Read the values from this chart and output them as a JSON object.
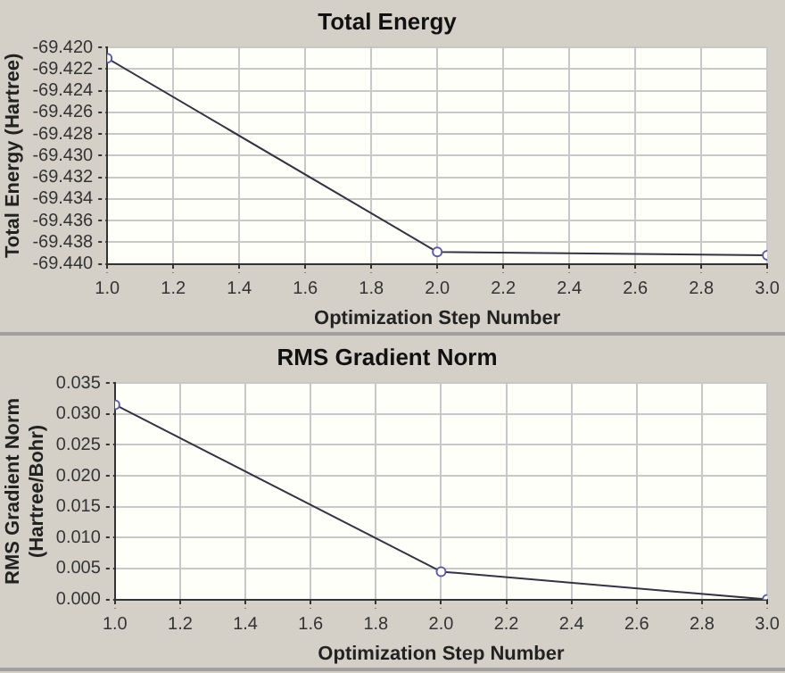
{
  "chart_data": [
    {
      "type": "line",
      "title": "Total Energy",
      "xlabel": "Optimization Step Number",
      "ylabel": "Total Energy (Hartree)",
      "x": [
        1,
        2,
        3
      ],
      "series": [
        {
          "color": "#333344",
          "values": [
            -69.421,
            -69.4389,
            -69.4392
          ]
        }
      ],
      "xlim": [
        1,
        3
      ],
      "xticks": [
        {
          "value": 1,
          "label": "1.0"
        },
        {
          "value": 1.2,
          "label": "1.2"
        },
        {
          "value": 1.4,
          "label": "1.4"
        },
        {
          "value": 1.6,
          "label": "1.6"
        },
        {
          "value": 1.8,
          "label": "1.8"
        },
        {
          "value": 2,
          "label": "2.0"
        },
        {
          "value": 2.2,
          "label": "2.2"
        },
        {
          "value": 2.4,
          "label": "2.4"
        },
        {
          "value": 2.6,
          "label": "2.6"
        },
        {
          "value": 2.8,
          "label": "2.8"
        },
        {
          "value": 3,
          "label": "3.0"
        }
      ],
      "ylim": [
        -69.44,
        -69.42
      ],
      "yticks": [
        {
          "value": -69.44,
          "label": "-69.440"
        },
        {
          "value": -69.438,
          "label": "-69.438"
        },
        {
          "value": -69.436,
          "label": "-69.436"
        },
        {
          "value": -69.434,
          "label": "-69.434"
        },
        {
          "value": -69.432,
          "label": "-69.432"
        },
        {
          "value": -69.43,
          "label": "-69.430"
        },
        {
          "value": -69.428,
          "label": "-69.428"
        },
        {
          "value": -69.426,
          "label": "-69.426"
        },
        {
          "value": -69.424,
          "label": "-69.424"
        },
        {
          "value": -69.422,
          "label": "-69.422"
        },
        {
          "value": -69.42,
          "label": "-69.420"
        }
      ],
      "grid": true,
      "legend": false,
      "marker": "circle",
      "line_style": "solid"
    },
    {
      "type": "line",
      "title": "RMS Gradient Norm",
      "xlabel": "Optimization Step Number",
      "ylabel": "RMS Gradient Norm (Hartree/Bohr)",
      "x": [
        1,
        2,
        3
      ],
      "series": [
        {
          "color": "#333344",
          "values": [
            0.0315,
            0.0045,
            0.0
          ]
        }
      ],
      "xlim": [
        1,
        3
      ],
      "xticks": [
        {
          "value": 1,
          "label": "1.0"
        },
        {
          "value": 1.2,
          "label": "1.2"
        },
        {
          "value": 1.4,
          "label": "1.4"
        },
        {
          "value": 1.6,
          "label": "1.6"
        },
        {
          "value": 1.8,
          "label": "1.8"
        },
        {
          "value": 2,
          "label": "2.0"
        },
        {
          "value": 2.2,
          "label": "2.2"
        },
        {
          "value": 2.4,
          "label": "2.4"
        },
        {
          "value": 2.6,
          "label": "2.6"
        },
        {
          "value": 2.8,
          "label": "2.8"
        },
        {
          "value": 3,
          "label": "3.0"
        }
      ],
      "ylim": [
        0,
        0.035
      ],
      "yticks": [
        {
          "value": 0,
          "label": "0.000"
        },
        {
          "value": 0.005,
          "label": "0.005"
        },
        {
          "value": 0.01,
          "label": "0.010"
        },
        {
          "value": 0.015,
          "label": "0.015"
        },
        {
          "value": 0.02,
          "label": "0.020"
        },
        {
          "value": 0.025,
          "label": "0.025"
        },
        {
          "value": 0.03,
          "label": "0.030"
        },
        {
          "value": 0.035,
          "label": "0.035"
        }
      ],
      "grid": true,
      "legend": false,
      "marker": "circle",
      "line_style": "solid"
    }
  ]
}
